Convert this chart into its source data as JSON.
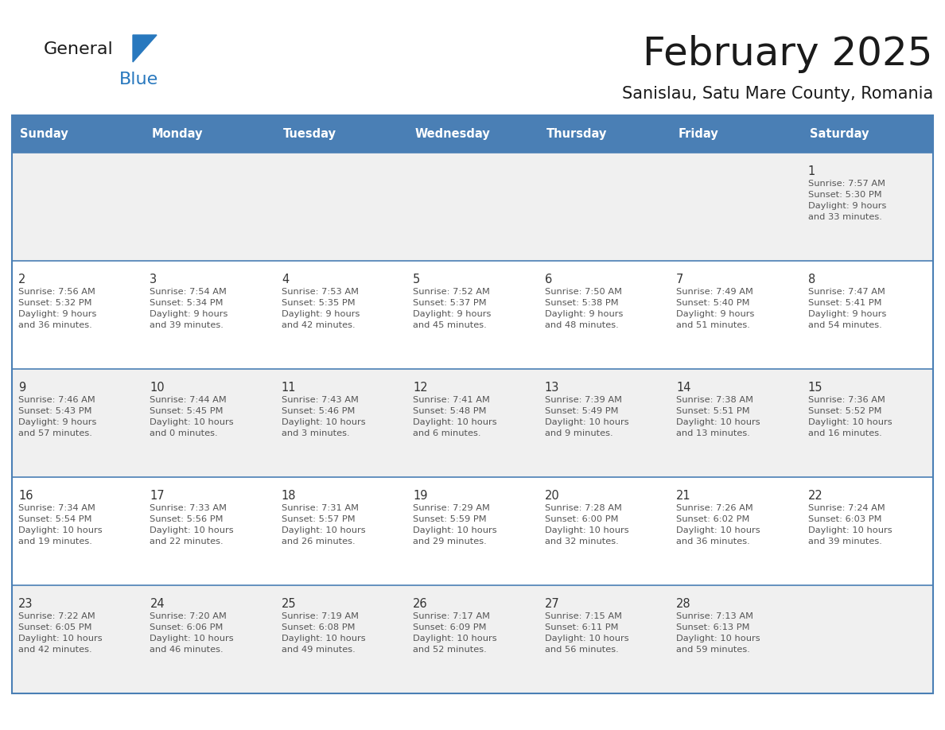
{
  "title": "February 2025",
  "subtitle": "Sanislau, Satu Mare County, Romania",
  "header_bg": "#4A7FB5",
  "header_text": "#FFFFFF",
  "cell_bg_odd": "#F0F0F0",
  "cell_bg_even": "#FFFFFF",
  "border_color": "#4A7FB5",
  "text_color": "#555555",
  "number_color": "#333333",
  "logo_general_color": "#1A1A1A",
  "logo_blue_color": "#2878BE",
  "day_headers": [
    "Sunday",
    "Monday",
    "Tuesday",
    "Wednesday",
    "Thursday",
    "Friday",
    "Saturday"
  ],
  "weeks": [
    [
      {
        "day": null,
        "info": null
      },
      {
        "day": null,
        "info": null
      },
      {
        "day": null,
        "info": null
      },
      {
        "day": null,
        "info": null
      },
      {
        "day": null,
        "info": null
      },
      {
        "day": null,
        "info": null
      },
      {
        "day": 1,
        "info": "Sunrise: 7:57 AM\nSunset: 5:30 PM\nDaylight: 9 hours\nand 33 minutes."
      }
    ],
    [
      {
        "day": 2,
        "info": "Sunrise: 7:56 AM\nSunset: 5:32 PM\nDaylight: 9 hours\nand 36 minutes."
      },
      {
        "day": 3,
        "info": "Sunrise: 7:54 AM\nSunset: 5:34 PM\nDaylight: 9 hours\nand 39 minutes."
      },
      {
        "day": 4,
        "info": "Sunrise: 7:53 AM\nSunset: 5:35 PM\nDaylight: 9 hours\nand 42 minutes."
      },
      {
        "day": 5,
        "info": "Sunrise: 7:52 AM\nSunset: 5:37 PM\nDaylight: 9 hours\nand 45 minutes."
      },
      {
        "day": 6,
        "info": "Sunrise: 7:50 AM\nSunset: 5:38 PM\nDaylight: 9 hours\nand 48 minutes."
      },
      {
        "day": 7,
        "info": "Sunrise: 7:49 AM\nSunset: 5:40 PM\nDaylight: 9 hours\nand 51 minutes."
      },
      {
        "day": 8,
        "info": "Sunrise: 7:47 AM\nSunset: 5:41 PM\nDaylight: 9 hours\nand 54 minutes."
      }
    ],
    [
      {
        "day": 9,
        "info": "Sunrise: 7:46 AM\nSunset: 5:43 PM\nDaylight: 9 hours\nand 57 minutes."
      },
      {
        "day": 10,
        "info": "Sunrise: 7:44 AM\nSunset: 5:45 PM\nDaylight: 10 hours\nand 0 minutes."
      },
      {
        "day": 11,
        "info": "Sunrise: 7:43 AM\nSunset: 5:46 PM\nDaylight: 10 hours\nand 3 minutes."
      },
      {
        "day": 12,
        "info": "Sunrise: 7:41 AM\nSunset: 5:48 PM\nDaylight: 10 hours\nand 6 minutes."
      },
      {
        "day": 13,
        "info": "Sunrise: 7:39 AM\nSunset: 5:49 PM\nDaylight: 10 hours\nand 9 minutes."
      },
      {
        "day": 14,
        "info": "Sunrise: 7:38 AM\nSunset: 5:51 PM\nDaylight: 10 hours\nand 13 minutes."
      },
      {
        "day": 15,
        "info": "Sunrise: 7:36 AM\nSunset: 5:52 PM\nDaylight: 10 hours\nand 16 minutes."
      }
    ],
    [
      {
        "day": 16,
        "info": "Sunrise: 7:34 AM\nSunset: 5:54 PM\nDaylight: 10 hours\nand 19 minutes."
      },
      {
        "day": 17,
        "info": "Sunrise: 7:33 AM\nSunset: 5:56 PM\nDaylight: 10 hours\nand 22 minutes."
      },
      {
        "day": 18,
        "info": "Sunrise: 7:31 AM\nSunset: 5:57 PM\nDaylight: 10 hours\nand 26 minutes."
      },
      {
        "day": 19,
        "info": "Sunrise: 7:29 AM\nSunset: 5:59 PM\nDaylight: 10 hours\nand 29 minutes."
      },
      {
        "day": 20,
        "info": "Sunrise: 7:28 AM\nSunset: 6:00 PM\nDaylight: 10 hours\nand 32 minutes."
      },
      {
        "day": 21,
        "info": "Sunrise: 7:26 AM\nSunset: 6:02 PM\nDaylight: 10 hours\nand 36 minutes."
      },
      {
        "day": 22,
        "info": "Sunrise: 7:24 AM\nSunset: 6:03 PM\nDaylight: 10 hours\nand 39 minutes."
      }
    ],
    [
      {
        "day": 23,
        "info": "Sunrise: 7:22 AM\nSunset: 6:05 PM\nDaylight: 10 hours\nand 42 minutes."
      },
      {
        "day": 24,
        "info": "Sunrise: 7:20 AM\nSunset: 6:06 PM\nDaylight: 10 hours\nand 46 minutes."
      },
      {
        "day": 25,
        "info": "Sunrise: 7:19 AM\nSunset: 6:08 PM\nDaylight: 10 hours\nand 49 minutes."
      },
      {
        "day": 26,
        "info": "Sunrise: 7:17 AM\nSunset: 6:09 PM\nDaylight: 10 hours\nand 52 minutes."
      },
      {
        "day": 27,
        "info": "Sunrise: 7:15 AM\nSunset: 6:11 PM\nDaylight: 10 hours\nand 56 minutes."
      },
      {
        "day": 28,
        "info": "Sunrise: 7:13 AM\nSunset: 6:13 PM\nDaylight: 10 hours\nand 59 minutes."
      },
      {
        "day": null,
        "info": null
      }
    ]
  ]
}
